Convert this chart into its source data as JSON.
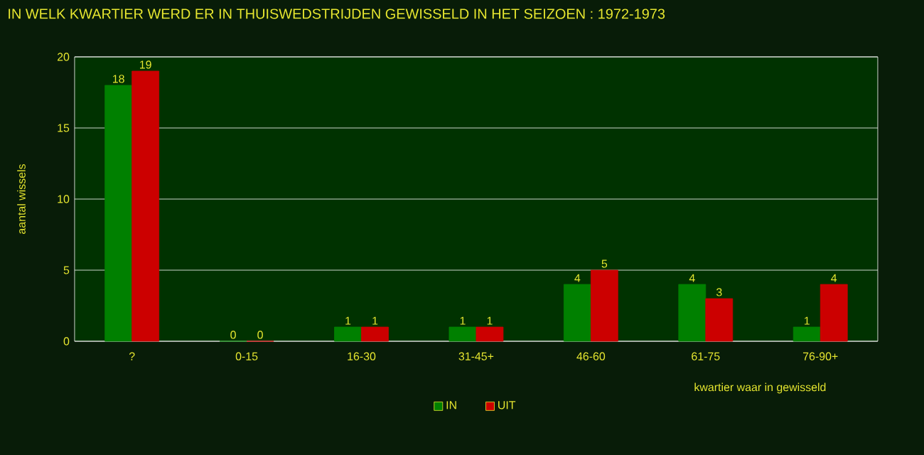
{
  "chart_data": {
    "type": "bar",
    "title": "IN WELK KWARTIER WERD ER IN THUISWEDSTRIJDEN GEWISSELD IN HET SEIZOEN : 1972-1973",
    "xlabel": "kwartier waar in gewisseld",
    "ylabel": "aantal wissels",
    "categories": [
      "?",
      "0-15",
      "16-30",
      "31-45+",
      "46-60",
      "61-75",
      "76-90+"
    ],
    "series": [
      {
        "name": "IN",
        "color": "#008000",
        "values": [
          18,
          0,
          1,
          1,
          4,
          4,
          1
        ]
      },
      {
        "name": "UIT",
        "color": "#cc0000",
        "values": [
          19,
          0,
          1,
          1,
          5,
          3,
          4
        ]
      }
    ],
    "ylim": [
      0,
      20
    ],
    "yticks": [
      0,
      5,
      10,
      15,
      20
    ],
    "grid": "y",
    "legend": "bottom",
    "data_labels": true
  }
}
